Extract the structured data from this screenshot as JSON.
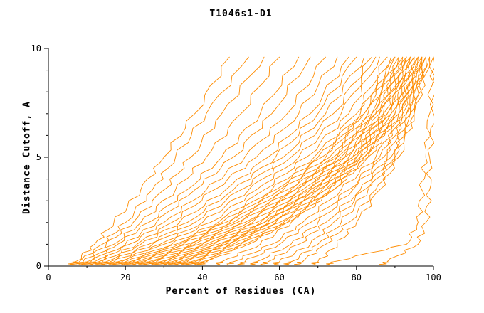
{
  "chart_data": {
    "type": "line",
    "title": "T1046s1-D1",
    "xlabel": "Percent of Residues (CA)",
    "ylabel": "Distance Cutoff, A",
    "xlim": [
      0,
      100
    ],
    "ylim": [
      0,
      10
    ],
    "x_ticks": [
      0,
      20,
      40,
      60,
      80,
      100
    ],
    "y_ticks": [
      0,
      5,
      10
    ],
    "x_minor_ticks": [
      10,
      30,
      50,
      70,
      90
    ],
    "y_minor_ticks": [
      1,
      2,
      3,
      4,
      6,
      7,
      8,
      9
    ],
    "grid": false,
    "legend": "none",
    "line_color": "#ff8c00",
    "axis_color": "#000000",
    "background_color": "#ffffff",
    "series_semantics": "Each curve is one predicted model: x = percent of CA residues superimposable within the distance cutoff y (GDT-style curve).",
    "cutoffs": [
      0.2,
      1,
      2,
      3.5,
      5,
      7,
      9.6
    ],
    "curves": [
      [
        7,
        12,
        17,
        24,
        30,
        38,
        47
      ],
      [
        8,
        14,
        20,
        27,
        33,
        41,
        52
      ],
      [
        9,
        15,
        22,
        30,
        37,
        45,
        56
      ],
      [
        10,
        17,
        24,
        33,
        41,
        50,
        60
      ],
      [
        11,
        18,
        26,
        36,
        45,
        55,
        65
      ],
      [
        12,
        20,
        28,
        38,
        48,
        58,
        68
      ],
      [
        13,
        21,
        30,
        41,
        51,
        62,
        72
      ],
      [
        14,
        23,
        32,
        43,
        54,
        65,
        75
      ],
      [
        15,
        24,
        34,
        46,
        57,
        68,
        78
      ],
      [
        16,
        26,
        36,
        48,
        59,
        70,
        80
      ],
      [
        17,
        27,
        38,
        50,
        61,
        72,
        82
      ],
      [
        18,
        29,
        40,
        52,
        63,
        74,
        84
      ],
      [
        19,
        30,
        42,
        54,
        65,
        76,
        85
      ],
      [
        20,
        32,
        44,
        56,
        67,
        78,
        86
      ],
      [
        21,
        33,
        45,
        58,
        69,
        80,
        88
      ],
      [
        22,
        34,
        46,
        59,
        70,
        81,
        89
      ],
      [
        23,
        35,
        47,
        60,
        71,
        82,
        90
      ],
      [
        24,
        36,
        48,
        61,
        72,
        82,
        90
      ],
      [
        25,
        37,
        49,
        62,
        73,
        83,
        91
      ],
      [
        26,
        38,
        50,
        63,
        74,
        84,
        91
      ],
      [
        27,
        39,
        51,
        64,
        75,
        84,
        92
      ],
      [
        28,
        40,
        52,
        64,
        75,
        85,
        92
      ],
      [
        29,
        41,
        53,
        65,
        76,
        85,
        93
      ],
      [
        30,
        42,
        54,
        66,
        77,
        86,
        93
      ],
      [
        31,
        43,
        55,
        67,
        77,
        86,
        93
      ],
      [
        32,
        44,
        56,
        68,
        78,
        87,
        94
      ],
      [
        33,
        45,
        56,
        68,
        79,
        87,
        94
      ],
      [
        34,
        46,
        57,
        69,
        79,
        88,
        94
      ],
      [
        35,
        46,
        58,
        70,
        80,
        88,
        95
      ],
      [
        36,
        47,
        58,
        70,
        80,
        89,
        95
      ],
      [
        37,
        48,
        59,
        71,
        81,
        89,
        95
      ],
      [
        38,
        49,
        60,
        72,
        81,
        90,
        96
      ],
      [
        39,
        50,
        61,
        72,
        82,
        90,
        96
      ],
      [
        40,
        51,
        62,
        73,
        82,
        91,
        96
      ],
      [
        41,
        52,
        62,
        74,
        83,
        91,
        97
      ],
      [
        45,
        55,
        63,
        74,
        83,
        91,
        97
      ],
      [
        48,
        58,
        66,
        76,
        85,
        92,
        97
      ],
      [
        51,
        60,
        68,
        78,
        86,
        92,
        97
      ],
      [
        54,
        63,
        70,
        79,
        87,
        93,
        98
      ],
      [
        57,
        65,
        72,
        81,
        88,
        93,
        98
      ],
      [
        60,
        68,
        74,
        82,
        89,
        94,
        98
      ],
      [
        63,
        70,
        76,
        83,
        90,
        94,
        98
      ],
      [
        66,
        72,
        78,
        85,
        90,
        95,
        99
      ],
      [
        70,
        75,
        80,
        86,
        91,
        95,
        99
      ],
      [
        74,
        93,
        96,
        97,
        98,
        99,
        100
      ],
      [
        88,
        96,
        98,
        99,
        99,
        100,
        100
      ]
    ]
  }
}
